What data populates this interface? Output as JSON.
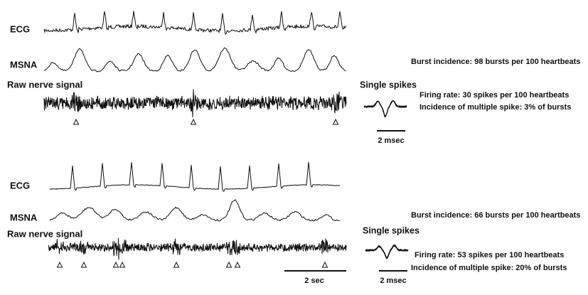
{
  "panels": [
    {
      "ecg": "ECG",
      "msna": "MSNA",
      "raw": "Raw nerve signal",
      "burst_incidence": "Burst incidence: 98 bursts per 100 heartbeats",
      "single_spikes": "Single spikes",
      "firing_rate": "Firing rate: 30 spikes per 100 heartbeats",
      "multiple_spike": "Incidence of multiple spike: 3% of bursts",
      "scale": "2 msec"
    },
    {
      "ecg": "ECG",
      "msna": "MSNA",
      "raw": "Raw nerve signal",
      "burst_incidence": "Burst incidence: 66 bursts per 100 heartbeats",
      "single_spikes": "Single spikes",
      "firing_rate": "Firing rate: 53 spikes per 100 heartbeats",
      "multiple_spike": "Incidence of multiple spike: 20% of bursts",
      "scale": "2 msec"
    }
  ],
  "time_scale": "2 sec"
}
